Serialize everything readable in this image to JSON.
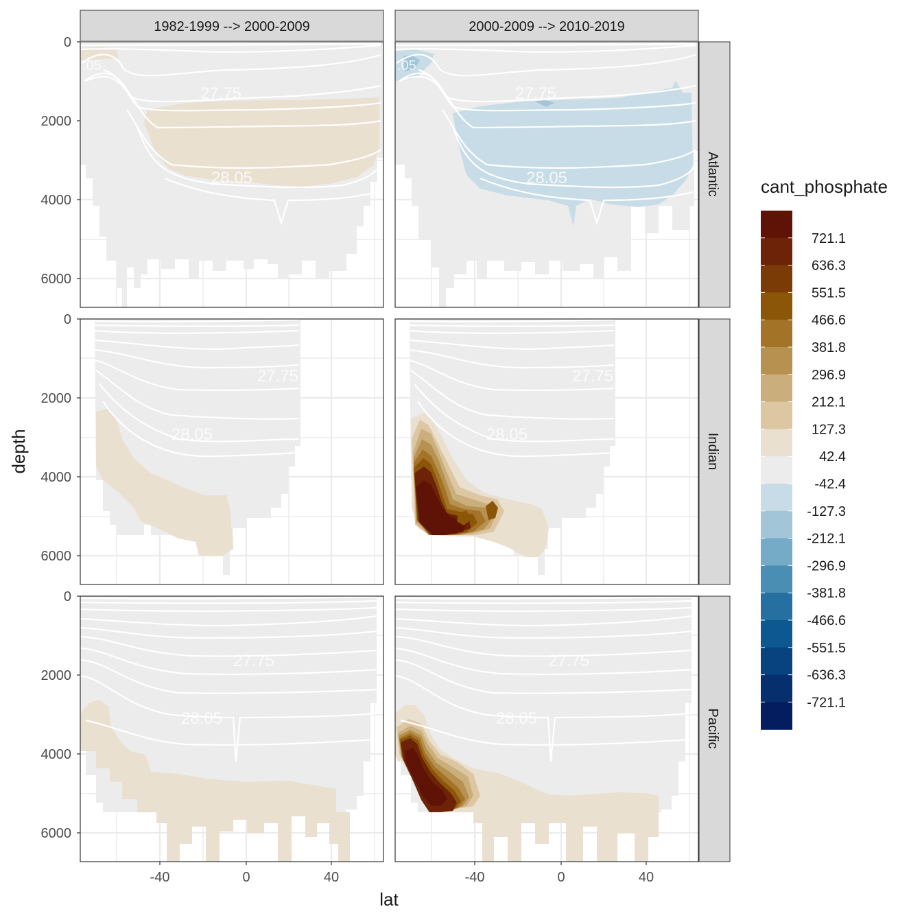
{
  "chart_data": {
    "type": "heatmap",
    "facet_columns": [
      "1982-1999 --> 2000-2009",
      "2000-2009 --> 2010-2019"
    ],
    "facet_rows": [
      "Atlantic",
      "Indian",
      "Pacific"
    ],
    "xlabel": "lat",
    "ylabel": "depth",
    "x_ticks": [
      "-40",
      "0",
      "40"
    ],
    "y_ticks": [
      "0",
      "2000",
      "4000",
      "6000"
    ],
    "xlim": [
      -78,
      65
    ],
    "ylim": [
      6700,
      0
    ],
    "y_reversed": true,
    "isopycnal_labels": [
      "27.75",
      "28.05"
    ],
    "legend": {
      "title": "cant_phosphate",
      "placement": "right",
      "labels": [
        "721.1",
        "636.3",
        "551.5",
        "466.6",
        "381.8",
        "296.9",
        "212.1",
        "127.3",
        "42.4",
        "-42.4",
        "-127.3",
        "-212.1",
        "-296.9",
        "-381.8",
        "-466.6",
        "-551.5",
        "-636.3",
        "-721.1"
      ],
      "colors": [
        "#5E1306",
        "#6C2308",
        "#7A3B06",
        "#8B5608",
        "#A37428",
        "#B7914F",
        "#CAAE7C",
        "#DDC7A3",
        "#EAE0D0",
        "#EBECEB",
        "#C7DCE6",
        "#A2C6D8",
        "#75ABC6",
        "#4B8EB3",
        "#2570A0",
        "#0E5891",
        "#08437F",
        "#06306D",
        "#041D5E"
      ]
    },
    "panels": [
      {
        "ocean": "Atlantic",
        "period": "1982-1999 --> 2000-2009",
        "feature": "tan band between the 27.75 and 28.05 isopycnals, about 1500-3700 m from 30°S to 60°N",
        "class_value": 42.4
      },
      {
        "ocean": "Atlantic",
        "period": "2000-2009 --> 2010-2019",
        "feature": "blue band about 1500-4200 m from 35°S to 60°N",
        "class_value": -42.4
      },
      {
        "ocean": "Indian",
        "period": "1982-1999 --> 2000-2009",
        "feature": "tan band along the bottom, 2400-6000 m, 70°S to 40°S",
        "class_value": 42.4
      },
      {
        "ocean": "Indian",
        "period": "2000-2009 --> 2010-2019",
        "feature": "dark brown maximum near 65°S-45°S, 3700-5500 m",
        "class_value": 721.1
      },
      {
        "ocean": "Pacific",
        "period": "1982-1999 --> 2000-2009",
        "feature": "tan band along the bottom, 3000-6700 m",
        "class_value": 42.4
      },
      {
        "ocean": "Pacific",
        "period": "2000-2009 --> 2010-2019",
        "feature": "dark brown maximum near 75°S-55°S, 3500-5400 m",
        "class_value": 721.1
      }
    ]
  }
}
